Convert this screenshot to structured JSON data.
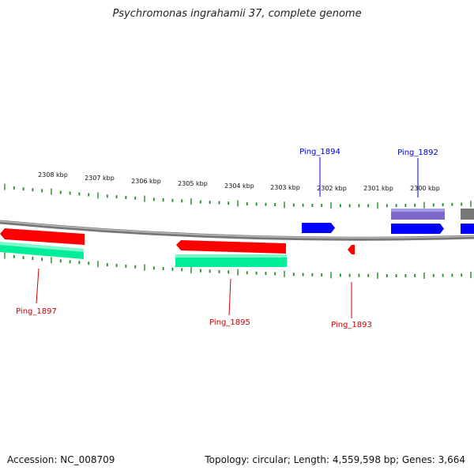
{
  "title": "Psychromonas ingrahamii 37, complete genome",
  "footer": {
    "accession": "Accession: NC_008709",
    "summary": "Topology: circular; Length: 4,559,598 bp; Genes: 3,664"
  },
  "colors": {
    "forward_cds": "#0000ff",
    "reverse_cds": "#ff0000",
    "reverse_shadow": "#00ee99",
    "forward_shadow": "#7b68c8",
    "backbone": "#888888",
    "ticks": "#228b22",
    "forward_label": "#0000cc",
    "reverse_label": "#cc0000"
  },
  "scale_labels": [
    "2308 kbp",
    "2307 kbp",
    "2306 kbp",
    "2305 kbp",
    "2304 kbp",
    "2303 kbp",
    "2302 kbp",
    "2301 kbp",
    "2300 kbp"
  ],
  "genes": [
    {
      "name": "Ping_1897",
      "strand": "reverse"
    },
    {
      "name": "Ping_1895",
      "strand": "reverse"
    },
    {
      "name": "Ping_1893",
      "strand": "reverse"
    },
    {
      "name": "Ping_1894",
      "strand": "forward"
    },
    {
      "name": "Ping_1892",
      "strand": "forward"
    }
  ]
}
